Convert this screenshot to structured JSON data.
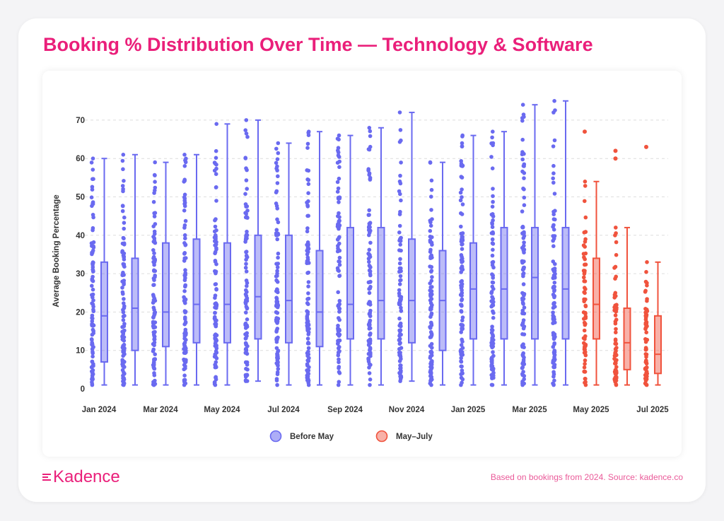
{
  "brand": {
    "name": "Kadence",
    "accent": "#ea1f7a"
  },
  "footnote": "Based on bookings from 2024. Source: kadence.co",
  "colors": {
    "before_may": "#6a6af0",
    "may_july": "#f0533d",
    "grid": "#dddddd"
  },
  "chart_data": {
    "type": "box",
    "title": "Booking % Distribution Over Time — Technology & Software",
    "xlabel": "",
    "ylabel": "Average Booking Percentage",
    "ylim": [
      0,
      75
    ],
    "yticks": [
      0,
      10,
      20,
      30,
      40,
      50,
      60,
      70
    ],
    "x_tick_labels": [
      "Jan 2024",
      "Mar 2024",
      "May 2024",
      "Jul 2024",
      "Sep 2024",
      "Nov 2024",
      "Jan 2025",
      "Mar 2025",
      "May 2025",
      "Jul 2025"
    ],
    "grid": "horizontal dashed",
    "legend": {
      "position": "bottom",
      "entries": [
        {
          "label": "Before May",
          "color": "#6a6af0"
        },
        {
          "label": "May–July",
          "color": "#f0533d"
        }
      ]
    },
    "series": [
      {
        "name": "Before May",
        "color": "#6a6af0",
        "boxes": [
          {
            "period": "Jan 2024",
            "min": 1,
            "q1": 7,
            "median": 19,
            "q3": 33,
            "max": 60
          },
          {
            "period": "Feb 2024",
            "min": 1,
            "q1": 10,
            "median": 21,
            "q3": 34,
            "max": 61
          },
          {
            "period": "Mar 2024",
            "min": 1,
            "q1": 11,
            "median": 20,
            "q3": 38,
            "max": 59
          },
          {
            "period": "Apr 2024",
            "min": 1,
            "q1": 12,
            "median": 22,
            "q3": 39,
            "max": 61
          },
          {
            "period": "May 2024",
            "min": 1,
            "q1": 12,
            "median": 22,
            "q3": 38,
            "max": 69
          },
          {
            "period": "Jun 2024",
            "min": 2,
            "q1": 13,
            "median": 24,
            "q3": 40,
            "max": 70
          },
          {
            "period": "Jul 2024",
            "min": 1,
            "q1": 12,
            "median": 23,
            "q3": 40,
            "max": 64
          },
          {
            "period": "Aug 2024",
            "min": 1,
            "q1": 11,
            "median": 20,
            "q3": 36,
            "max": 67
          },
          {
            "period": "Sep 2024",
            "min": 1,
            "q1": 13,
            "median": 22,
            "q3": 42,
            "max": 66
          },
          {
            "period": "Oct 2024",
            "min": 1,
            "q1": 13,
            "median": 23,
            "q3": 42,
            "max": 68
          },
          {
            "period": "Nov 2024",
            "min": 2,
            "q1": 12,
            "median": 23,
            "q3": 39,
            "max": 72
          },
          {
            "period": "Dec 2024",
            "min": 1,
            "q1": 10,
            "median": 23,
            "q3": 36,
            "max": 59
          },
          {
            "period": "Jan 2025",
            "min": 1,
            "q1": 13,
            "median": 26,
            "q3": 38,
            "max": 66
          },
          {
            "period": "Feb 2025",
            "min": 1,
            "q1": 13,
            "median": 26,
            "q3": 42,
            "max": 67
          },
          {
            "period": "Mar 2025",
            "min": 1,
            "q1": 13,
            "median": 29,
            "q3": 42,
            "max": 74
          },
          {
            "period": "Apr 2025",
            "min": 1,
            "q1": 13,
            "median": 26,
            "q3": 42,
            "max": 75
          }
        ]
      },
      {
        "name": "May–July",
        "color": "#f0533d",
        "boxes": [
          {
            "period": "May 2025",
            "min": 1,
            "q1": 13,
            "median": 22,
            "q3": 34,
            "max": 54,
            "outliers": [
              67
            ]
          },
          {
            "period": "Jun 2025",
            "min": 1,
            "q1": 5,
            "median": 12,
            "q3": 21,
            "max": 42,
            "outliers": [
              60,
              62
            ]
          },
          {
            "period": "Jul 2025",
            "min": 1,
            "q1": 4,
            "median": 9,
            "q3": 19,
            "max": 33,
            "outliers": [
              63
            ]
          }
        ]
      }
    ]
  }
}
